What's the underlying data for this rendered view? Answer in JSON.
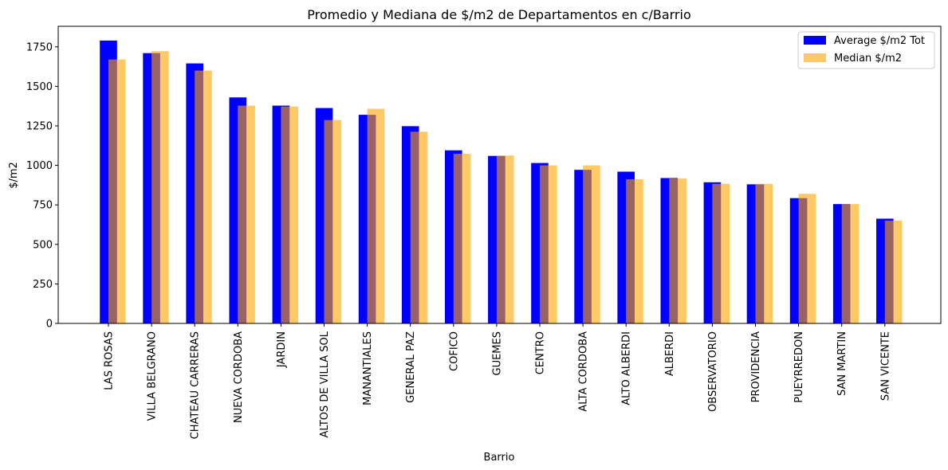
{
  "chart_data": {
    "type": "bar",
    "title": "Promedio y Mediana de $/m2 de Departamentos en c/Barrio",
    "xlabel": "Barrio",
    "ylabel": "$/m2",
    "ylim": [
      0,
      1880
    ],
    "yticks": [
      0,
      250,
      500,
      750,
      1000,
      1250,
      1500,
      1750
    ],
    "grid": false,
    "legend_position": "top-right",
    "categories": [
      "LAS ROSAS",
      "VILLA BELGRANO",
      "CHATEAU CARRERAS",
      "NUEVA CORDOBA",
      "JARDIN",
      "ALTOS DE VILLA SOL",
      "MANANTIALES",
      "GENERAL PAZ",
      "COFICO",
      "GUEMES",
      "CENTRO",
      "ALTA CORDOBA",
      "ALTO ALBERDI",
      "ALBERDI",
      "OBSERVATORIO",
      "PROVIDENCIA",
      "PUEYRREDON",
      "SAN MARTIN",
      "SAN VICENTE"
    ],
    "series": [
      {
        "name": "Average $/m2 Tot",
        "color": "#0000ff",
        "opacity": 1,
        "values": [
          1790,
          1710,
          1645,
          1430,
          1378,
          1363,
          1320,
          1248,
          1095,
          1060,
          1015,
          972,
          960,
          920,
          893,
          880,
          793,
          755,
          663
        ]
      },
      {
        "name": "Median $/m2",
        "color": "#ffa500",
        "opacity": 0.6,
        "values": [
          1670,
          1722,
          1600,
          1378,
          1372,
          1287,
          1358,
          1213,
          1073,
          1062,
          1000,
          1000,
          912,
          917,
          883,
          883,
          820,
          755,
          650
        ]
      }
    ]
  }
}
